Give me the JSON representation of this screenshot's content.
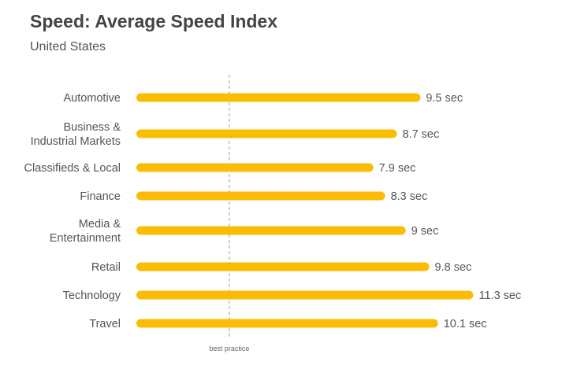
{
  "title": "Speed: Average Speed Index",
  "subtitle": "United States",
  "colors": {
    "bar": "#FBBC05",
    "reference_line": "#C8C8C8",
    "category_text": "#555555",
    "value_text": "#555555"
  },
  "chart_data": {
    "type": "bar",
    "orientation": "horizontal",
    "categories": [
      [
        "Automotive"
      ],
      [
        "Business &",
        "Industrial Markets"
      ],
      [
        "Classifieds & Local"
      ],
      [
        "Finance"
      ],
      [
        "Media &",
        "Entertainment"
      ],
      [
        "Retail"
      ],
      [
        "Technology"
      ],
      [
        "Travel"
      ]
    ],
    "values": [
      9.5,
      8.7,
      7.9,
      8.3,
      9,
      9.8,
      11.3,
      10.1
    ],
    "value_labels": [
      "9.5 sec",
      "8.7 sec",
      "7.9 sec",
      "8.3 sec",
      "9 sec",
      "9.8 sec",
      "11.3 sec",
      "10.1 sec"
    ],
    "unit": "sec",
    "reference_line": {
      "label": "best practice",
      "value": 3,
      "style": "dotted"
    },
    "xlim": [
      0,
      12
    ],
    "grid": false,
    "legend": "none"
  }
}
